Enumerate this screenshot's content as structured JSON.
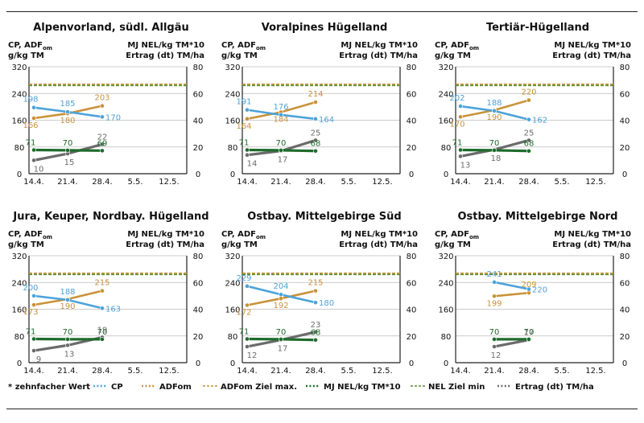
{
  "chart_data": [
    {
      "type": "line",
      "title": "Alpenvorland, südl. Allgäu",
      "categories": [
        "14.4.",
        "21.4.",
        "28.4.",
        "5.5.",
        "12.5."
      ],
      "ylabel_left": [
        "CP, ADF",
        "om",
        "g/kg TM"
      ],
      "ylabel_right": [
        "MJ NEL/kg TM*10",
        "Ertrag (dt) TM/ha"
      ],
      "ylim": [
        0,
        320
      ],
      "y2lim": [
        0,
        80
      ],
      "yticks": [
        "0",
        "80",
        "160",
        "240",
        "320"
      ],
      "y2ticks": [
        "0",
        "20",
        "40",
        "60",
        "80"
      ],
      "reference_lines": {
        "adf_max": 268,
        "nel_min": 264
      },
      "series": {
        "nel": [
          71,
          70,
          69
        ],
        "cp": [
          198,
          185,
          170
        ],
        "adf": [
          166,
          180,
          203
        ],
        "ertrag": [
          10,
          15,
          22
        ]
      }
    },
    {
      "type": "line",
      "title": "Voralpines Hügelland",
      "categories": [
        "14.4.",
        "21.4.",
        "28.4.",
        "5.5.",
        "12.5."
      ],
      "ylabel_left": [
        "CP, ADF",
        "om",
        "g/kg TM"
      ],
      "ylabel_right": [
        "MJ NEL/kg TM*10",
        "Ertrag (dt) TM/ha"
      ],
      "ylim": [
        0,
        320
      ],
      "y2lim": [
        0,
        80
      ],
      "yticks": [
        "0",
        "80",
        "160",
        "240",
        "320"
      ],
      "y2ticks": [
        "0",
        "20",
        "40",
        "60",
        "80"
      ],
      "reference_lines": {
        "adf_max": 268,
        "nel_min": 264
      },
      "series": {
        "nel": [
          71,
          70,
          68
        ],
        "cp": [
          191,
          176,
          164
        ],
        "adf": [
          164,
          184,
          214
        ],
        "ertrag": [
          14,
          17,
          25
        ]
      }
    },
    {
      "type": "line",
      "title": "Tertiär-Hügelland",
      "categories": [
        "14.4.",
        "21.4.",
        "28.4.",
        "5.5.",
        "12.5."
      ],
      "ylabel_left": [
        "CP, ADF",
        "om",
        "g/kg TM"
      ],
      "ylabel_right": [
        "MJ NEL/kg TM*10",
        "Ertrag (dt) TM/ha"
      ],
      "ylim": [
        0,
        320
      ],
      "y2lim": [
        0,
        80
      ],
      "yticks": [
        "0",
        "80",
        "160",
        "240",
        "320"
      ],
      "y2ticks": [
        "0",
        "20",
        "40",
        "60",
        "80"
      ],
      "reference_lines": {
        "adf_max": 268,
        "nel_min": 264
      },
      "series": {
        "nel": [
          71,
          70,
          68
        ],
        "cp": [
          202,
          188,
          162
        ],
        "adf": [
          170,
          190,
          220
        ],
        "ertrag": [
          13,
          18,
          25
        ]
      }
    },
    {
      "type": "line",
      "title": "Jura, Keuper, Nordbay. Hügelland",
      "categories": [
        "14.4.",
        "21.4.",
        "28.4.",
        "5.5.",
        "12.5."
      ],
      "ylabel_left": [
        "CP, ADF",
        "om",
        "g/kg TM"
      ],
      "ylabel_right": [
        "MJ NEL/kg TM*10",
        "Ertrag (dt) TM/ha"
      ],
      "ylim": [
        0,
        320
      ],
      "y2lim": [
        0,
        80
      ],
      "yticks": [
        "0",
        "80",
        "160",
        "240",
        "320"
      ],
      "y2ticks": [
        "0",
        "20",
        "40",
        "60",
        "80"
      ],
      "reference_lines": {
        "adf_max": 268,
        "nel_min": 264
      },
      "series": {
        "nel": [
          71,
          70,
          70
        ],
        "cp": [
          200,
          188,
          163
        ],
        "adf": [
          173,
          190,
          215
        ],
        "ertrag": [
          9,
          13,
          19
        ]
      }
    },
    {
      "type": "line",
      "title": "Ostbay. Mittelgebirge Süd",
      "categories": [
        "14.4.",
        "21.4.",
        "28.4.",
        "5.5.",
        "12.5."
      ],
      "ylabel_left": [
        "CP, ADF",
        "om",
        "g/kg TM"
      ],
      "ylabel_right": [
        "MJ NEL/kg TM*10",
        "Ertrag (dt) TM/ha"
      ],
      "ylim": [
        0,
        320
      ],
      "y2lim": [
        0,
        80
      ],
      "yticks": [
        "0",
        "80",
        "160",
        "240",
        "320"
      ],
      "y2ticks": [
        "0",
        "20",
        "40",
        "60",
        "80"
      ],
      "reference_lines": {
        "adf_max": 268,
        "nel_min": 264
      },
      "series": {
        "nel": [
          71,
          70,
          68
        ],
        "cp": [
          229,
          204,
          180
        ],
        "adf": [
          172,
          192,
          215
        ],
        "ertrag": [
          12,
          17,
          23
        ]
      }
    },
    {
      "type": "line",
      "title": "Ostbay. Mittelgebirge Nord",
      "categories": [
        "14.4.",
        "21.4.",
        "28.4.",
        "5.5.",
        "12.5."
      ],
      "ylabel_left": [
        "CP, ADF",
        "om",
        "g/kg TM"
      ],
      "ylabel_right": [
        "MJ NEL/kg TM*10",
        "Ertrag (dt) TM/ha"
      ],
      "ylim": [
        0,
        320
      ],
      "y2lim": [
        0,
        80
      ],
      "yticks": [
        "0",
        "80",
        "160",
        "240",
        "320"
      ],
      "y2ticks": [
        "0",
        "20",
        "40",
        "60",
        "80"
      ],
      "reference_lines": {
        "adf_max": 268,
        "nel_min": 264
      },
      "series": {
        "nel": [
          null,
          70,
          70
        ],
        "cp": [
          null,
          241,
          220
        ],
        "adf": [
          null,
          199,
          209
        ],
        "ertrag": [
          null,
          12,
          17
        ]
      }
    }
  ],
  "legend": {
    "note": "* zehnfacher Wert",
    "items": [
      {
        "key": "cp",
        "label": "CP",
        "style": "dot-line"
      },
      {
        "key": "adf",
        "label": "ADFom",
        "style": "dot-line"
      },
      {
        "key": "adf_max",
        "label": "ADFom Ziel max.",
        "style": "dashed"
      },
      {
        "key": "nel",
        "label": "MJ NEL/kg TM*10",
        "style": "dot-line"
      },
      {
        "key": "nel_min",
        "label": "NEL Ziel min",
        "style": "dashed"
      },
      {
        "key": "ertrag",
        "label": "Ertrag (dt) TM/ha",
        "style": "dot-line"
      }
    ]
  },
  "colors": {
    "cp": "#4da3d9",
    "adf": "#c9923a",
    "nel": "#1e6b2c",
    "ertrag": "#6b6b6b",
    "adf_max": "#c9923a",
    "nel_min": "#5a8a2a",
    "axis": "#222222",
    "grid": "#bbbbbb"
  }
}
